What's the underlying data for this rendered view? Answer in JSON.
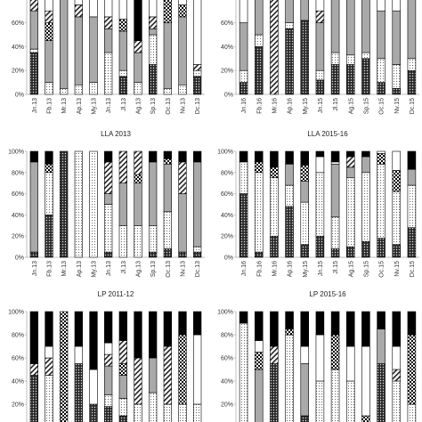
{
  "colors": {
    "black": "#000000",
    "grey": "#a9a9a9",
    "white": "#ffffff",
    "axis": "#bfbfbf"
  },
  "chart_data": [
    {
      "type": "bar",
      "stacked": true,
      "title": "",
      "ylim": [
        0,
        100
      ],
      "y_ticks": [
        "0%",
        "20%",
        "40%",
        "60%",
        "80%"
      ],
      "categories": [
        "Jn.13",
        "Fb.13",
        "Mr.13",
        "Ap.13",
        "My.13",
        "Jn.13",
        "Jl.13",
        "Ag.13",
        "Sp.13",
        "Oc.13",
        "Nv.13",
        "Dc.13"
      ],
      "series": [
        {
          "pattern": "dots-dark",
          "values": [
            35,
            0,
            0,
            0,
            0,
            0,
            15,
            0,
            25,
            0,
            0,
            15
          ]
        },
        {
          "pattern": "dots-light",
          "values": [
            3,
            10,
            5,
            8,
            10,
            35,
            5,
            10,
            25,
            5,
            8,
            5
          ]
        },
        {
          "pattern": "grey",
          "values": [
            32,
            35,
            75,
            57,
            55,
            20,
            33,
            25,
            5,
            55,
            57,
            0
          ]
        },
        {
          "pattern": "checks",
          "values": [
            0,
            15,
            0,
            0,
            0,
            0,
            10,
            0,
            0,
            20,
            10,
            0
          ]
        },
        {
          "pattern": "stripes",
          "values": [
            10,
            10,
            0,
            10,
            0,
            10,
            0,
            10,
            10,
            0,
            0,
            5
          ]
        },
        {
          "pattern": "white",
          "values": [
            20,
            30,
            20,
            25,
            35,
            35,
            37,
            0,
            35,
            20,
            25,
            75
          ]
        },
        {
          "pattern": "black",
          "values": [
            0,
            0,
            0,
            0,
            0,
            0,
            0,
            55,
            0,
            0,
            0,
            0
          ]
        }
      ]
    },
    {
      "type": "bar",
      "stacked": true,
      "title": "",
      "ylim": [
        0,
        100
      ],
      "y_ticks": [
        "0%",
        "20%",
        "40%",
        "60%",
        "80%"
      ],
      "categories": [
        "Jn.16",
        "Fb.16",
        "Mr.16",
        "Ap.16",
        "My.15",
        "Jn.15",
        "Jl.15",
        "Ag.15",
        "Sp.15",
        "Oc.15",
        "Nv.15",
        "Dc.15"
      ],
      "series": [
        {
          "pattern": "dots-dark",
          "values": [
            10,
            40,
            0,
            55,
            62,
            12,
            25,
            25,
            30,
            10,
            5,
            20
          ]
        },
        {
          "pattern": "dots-light",
          "values": [
            10,
            10,
            0,
            5,
            0,
            8,
            10,
            8,
            5,
            20,
            20,
            10
          ]
        },
        {
          "pattern": "grey",
          "values": [
            40,
            30,
            0,
            25,
            20,
            40,
            45,
            50,
            45,
            40,
            45,
            55
          ]
        },
        {
          "pattern": "checks",
          "values": [
            0,
            5,
            0,
            0,
            0,
            0,
            0,
            5,
            0,
            0,
            0,
            0
          ]
        },
        {
          "pattern": "stripes",
          "values": [
            0,
            0,
            90,
            0,
            0,
            10,
            0,
            0,
            0,
            0,
            0,
            0
          ]
        },
        {
          "pattern": "white",
          "values": [
            35,
            10,
            0,
            10,
            13,
            28,
            15,
            10,
            15,
            20,
            20,
            0
          ]
        },
        {
          "pattern": "black",
          "values": [
            5,
            5,
            10,
            5,
            5,
            2,
            5,
            2,
            5,
            10,
            10,
            15
          ]
        }
      ]
    },
    {
      "type": "bar",
      "stacked": true,
      "title": "LLA 2013",
      "ylim": [
        0,
        100
      ],
      "y_ticks": [
        "0%",
        "20%",
        "40%",
        "60%",
        "80%",
        "100%"
      ],
      "categories": [
        "Jn.13",
        "Fb.13",
        "Mr.13",
        "Ap.13",
        "My.13",
        "Jn.13",
        "Jl.13",
        "Ag.13",
        "Sp.13",
        "Oc.13",
        "Nv.13",
        "Dc.13"
      ],
      "series": [
        {
          "pattern": "dots-dark",
          "values": [
            5,
            40,
            100,
            0,
            0,
            5,
            0,
            0,
            5,
            8,
            5,
            5
          ]
        },
        {
          "pattern": "dots-light",
          "values": [
            0,
            40,
            0,
            100,
            100,
            45,
            30,
            30,
            25,
            35,
            0,
            5
          ]
        },
        {
          "pattern": "grey",
          "values": [
            85,
            0,
            0,
            0,
            0,
            10,
            40,
            40,
            60,
            45,
            55,
            80
          ]
        },
        {
          "pattern": "checks",
          "values": [
            0,
            8,
            0,
            0,
            0,
            0,
            0,
            8,
            0,
            5,
            0,
            0
          ]
        },
        {
          "pattern": "stripes",
          "values": [
            0,
            0,
            0,
            0,
            0,
            30,
            30,
            22,
            0,
            0,
            30,
            0
          ]
        },
        {
          "pattern": "white",
          "values": [
            0,
            0,
            0,
            0,
            0,
            0,
            0,
            0,
            0,
            0,
            0,
            0
          ]
        },
        {
          "pattern": "black",
          "values": [
            10,
            12,
            0,
            0,
            0,
            10,
            0,
            0,
            10,
            7,
            10,
            10
          ]
        }
      ]
    },
    {
      "type": "bar",
      "stacked": true,
      "title": "LLA 2015-16",
      "ylim": [
        0,
        100
      ],
      "y_ticks": [
        "0%",
        "20%",
        "40%",
        "60%",
        "80%",
        "100%"
      ],
      "categories": [
        "Jn.16",
        "Fb.16",
        "Mr.16",
        "Ap.16",
        "My.15",
        "Jn.15",
        "Jl.15",
        "Ag.15",
        "Sp.15",
        "Oc.15",
        "Nv.15",
        "Dc.15"
      ],
      "series": [
        {
          "pattern": "dots-dark",
          "values": [
            60,
            5,
            20,
            48,
            12,
            20,
            8,
            10,
            15,
            18,
            12,
            28
          ]
        },
        {
          "pattern": "dots-light",
          "values": [
            30,
            75,
            55,
            20,
            40,
            60,
            30,
            65,
            65,
            70,
            50,
            40
          ]
        },
        {
          "pattern": "grey",
          "values": [
            0,
            0,
            0,
            20,
            20,
            0,
            50,
            10,
            15,
            0,
            0,
            15
          ]
        },
        {
          "pattern": "checks",
          "values": [
            0,
            10,
            10,
            0,
            15,
            0,
            0,
            0,
            0,
            10,
            20,
            0
          ]
        },
        {
          "pattern": "stripes",
          "values": [
            0,
            0,
            0,
            0,
            0,
            0,
            0,
            10,
            0,
            0,
            0,
            0
          ]
        },
        {
          "pattern": "white",
          "values": [
            0,
            0,
            0,
            0,
            0,
            15,
            2,
            0,
            0,
            2,
            18,
            0
          ]
        },
        {
          "pattern": "black",
          "values": [
            10,
            10,
            15,
            12,
            13,
            5,
            10,
            5,
            5,
            0,
            0,
            17
          ]
        }
      ]
    },
    {
      "type": "bar",
      "stacked": true,
      "title": "LP 2011-12",
      "ylim": [
        0,
        100
      ],
      "y_ticks": [
        "0%",
        "20%",
        "40%",
        "60%",
        "80%",
        "100%"
      ],
      "categories": [
        "",
        "",
        "",
        "",
        "",
        "",
        "",
        "",
        "",
        "",
        "",
        ""
      ],
      "series": [
        {
          "pattern": "dots-dark",
          "values": [
            45,
            0,
            0,
            55,
            20,
            18,
            10,
            0,
            0,
            0,
            0,
            0
          ]
        },
        {
          "pattern": "dots-light",
          "values": [
            0,
            45,
            0,
            0,
            0,
            10,
            15,
            20,
            30,
            20,
            20,
            20
          ]
        },
        {
          "pattern": "grey",
          "values": [
            0,
            0,
            0,
            0,
            0,
            25,
            20,
            0,
            30,
            0,
            0,
            0
          ]
        },
        {
          "pattern": "checks",
          "values": [
            0,
            0,
            100,
            0,
            0,
            0,
            10,
            0,
            0,
            0,
            60,
            0
          ]
        },
        {
          "pattern": "stripes",
          "values": [
            10,
            15,
            0,
            0,
            0,
            10,
            20,
            40,
            0,
            50,
            0,
            0
          ]
        },
        {
          "pattern": "white",
          "values": [
            0,
            10,
            0,
            15,
            30,
            10,
            0,
            0,
            0,
            0,
            0,
            60
          ]
        },
        {
          "pattern": "black",
          "values": [
            45,
            30,
            0,
            30,
            50,
            27,
            25,
            40,
            40,
            30,
            20,
            20
          ]
        }
      ]
    },
    {
      "type": "bar",
      "stacked": true,
      "title": "LP 2015-16",
      "ylim": [
        0,
        100
      ],
      "y_ticks": [
        "0%",
        "20%",
        "40%",
        "60%",
        "80%",
        "100%"
      ],
      "categories": [
        "",
        "",
        "",
        "",
        "",
        "",
        "",
        "",
        "",
        "",
        "",
        ""
      ],
      "series": [
        {
          "pattern": "dots-dark",
          "values": [
            0,
            0,
            55,
            0,
            10,
            0,
            0,
            0,
            0,
            55,
            0,
            0
          ]
        },
        {
          "pattern": "dots-light",
          "values": [
            90,
            0,
            0,
            80,
            0,
            40,
            50,
            40,
            0,
            0,
            40,
            20
          ]
        },
        {
          "pattern": "grey",
          "values": [
            0,
            50,
            0,
            0,
            45,
            0,
            0,
            0,
            0,
            30,
            0,
            0
          ]
        },
        {
          "pattern": "checks",
          "values": [
            0,
            15,
            0,
            5,
            0,
            0,
            30,
            0,
            10,
            0,
            0,
            60
          ]
        },
        {
          "pattern": "stripes",
          "values": [
            0,
            0,
            15,
            0,
            0,
            0,
            0,
            0,
            0,
            0,
            10,
            0
          ]
        },
        {
          "pattern": "white",
          "values": [
            0,
            10,
            0,
            0,
            15,
            40,
            0,
            30,
            60,
            0,
            20,
            0
          ]
        },
        {
          "pattern": "black",
          "values": [
            10,
            25,
            30,
            15,
            30,
            20,
            20,
            30,
            30,
            15,
            30,
            20
          ]
        }
      ]
    }
  ]
}
